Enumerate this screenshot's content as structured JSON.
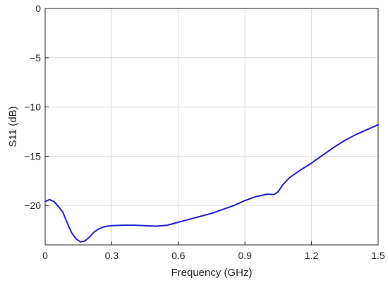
{
  "chart_data": {
    "type": "line",
    "title": "",
    "xlabel": "Frequency (GHz)",
    "ylabel": "S11 (dB)",
    "xlim": [
      0,
      1.5
    ],
    "ylim": [
      -24,
      0
    ],
    "xticks": [
      0,
      0.3,
      0.6,
      0.9,
      1.2,
      1.5
    ],
    "xtick_labels": [
      "0",
      "0.3",
      "0.6",
      "0.9",
      "1.2",
      "1.5"
    ],
    "yticks": [
      0,
      -5,
      -10,
      -15,
      -20
    ],
    "ytick_labels": [
      "0",
      "−5",
      "−10",
      "−15",
      "−20"
    ],
    "grid": true,
    "legend": false,
    "series": [
      {
        "color": "#1f1fd6",
        "x": [
          0.0,
          0.02,
          0.04,
          0.06,
          0.08,
          0.1,
          0.12,
          0.14,
          0.16,
          0.18,
          0.2,
          0.22,
          0.24,
          0.26,
          0.28,
          0.3,
          0.35,
          0.4,
          0.45,
          0.5,
          0.55,
          0.6,
          0.65,
          0.7,
          0.75,
          0.8,
          0.85,
          0.9,
          0.95,
          1.0,
          1.03,
          1.05,
          1.07,
          1.1,
          1.15,
          1.2,
          1.25,
          1.3,
          1.35,
          1.4,
          1.45,
          1.5
        ],
        "y": [
          -19.6,
          -19.4,
          -19.6,
          -20.1,
          -20.7,
          -21.8,
          -22.8,
          -23.4,
          -23.7,
          -23.6,
          -23.2,
          -22.7,
          -22.4,
          -22.2,
          -22.1,
          -22.05,
          -22.0,
          -22.0,
          -22.05,
          -22.1,
          -22.0,
          -21.7,
          -21.4,
          -21.1,
          -20.8,
          -20.4,
          -20.0,
          -19.5,
          -19.1,
          -18.85,
          -18.9,
          -18.6,
          -17.9,
          -17.2,
          -16.4,
          -15.7,
          -14.9,
          -14.1,
          -13.4,
          -12.8,
          -12.3,
          -11.8
        ]
      }
    ]
  }
}
